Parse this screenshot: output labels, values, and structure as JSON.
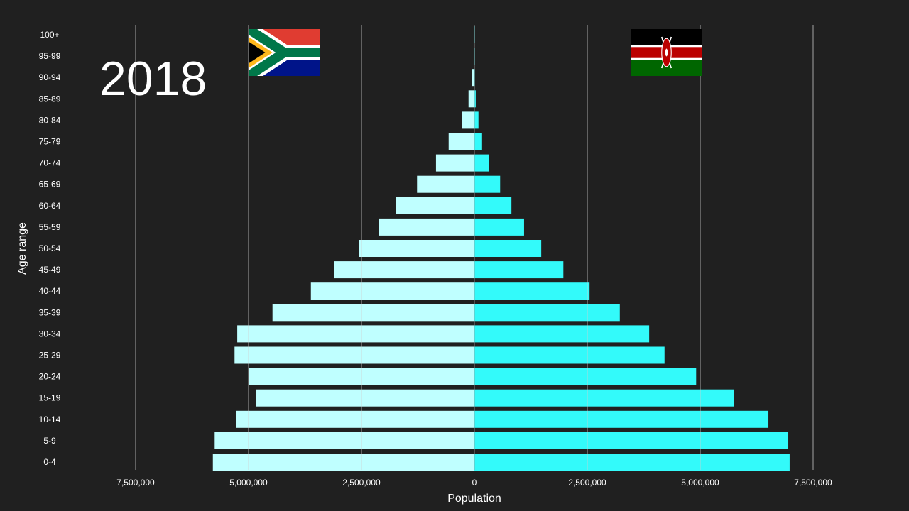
{
  "year": "2018",
  "left_country_flag": "South Africa",
  "right_country_flag": "Kenya",
  "colors": {
    "background": "#202020",
    "left_bars": "#bfffff",
    "right_bars": "#33fafa",
    "grid": "#bbbbbb"
  },
  "chart_data": {
    "type": "bar",
    "orientation": "horizontal-pyramid",
    "xlabel": "Population",
    "ylabel": "Age range",
    "xlim": [
      -7500000,
      7500000
    ],
    "x_ticks": [
      "7,500,000",
      "5,000,000",
      "2,500,000",
      "0",
      "2,500,000",
      "5,000,000",
      "7,500,000"
    ],
    "grid": true,
    "categories": [
      "100+",
      "95-99",
      "90-94",
      "85-89",
      "80-84",
      "75-79",
      "70-74",
      "65-69",
      "60-64",
      "55-59",
      "50-54",
      "45-49",
      "40-44",
      "35-39",
      "30-34",
      "25-29",
      "20-24",
      "15-19",
      "10-14",
      "5-9",
      "0-4"
    ],
    "series": [
      {
        "side": "left",
        "values": [
          5000,
          15000,
          50000,
          130000,
          280000,
          570000,
          850000,
          1270000,
          1730000,
          2120000,
          2560000,
          3100000,
          3620000,
          4470000,
          5250000,
          5310000,
          5000000,
          4840000,
          5270000,
          5750000,
          5790000
        ]
      },
      {
        "side": "right",
        "values": [
          3000,
          3000,
          10000,
          30000,
          90000,
          170000,
          330000,
          570000,
          820000,
          1100000,
          1480000,
          1970000,
          2550000,
          3220000,
          3870000,
          4210000,
          4910000,
          5740000,
          6510000,
          6950000,
          6980000
        ]
      }
    ]
  }
}
